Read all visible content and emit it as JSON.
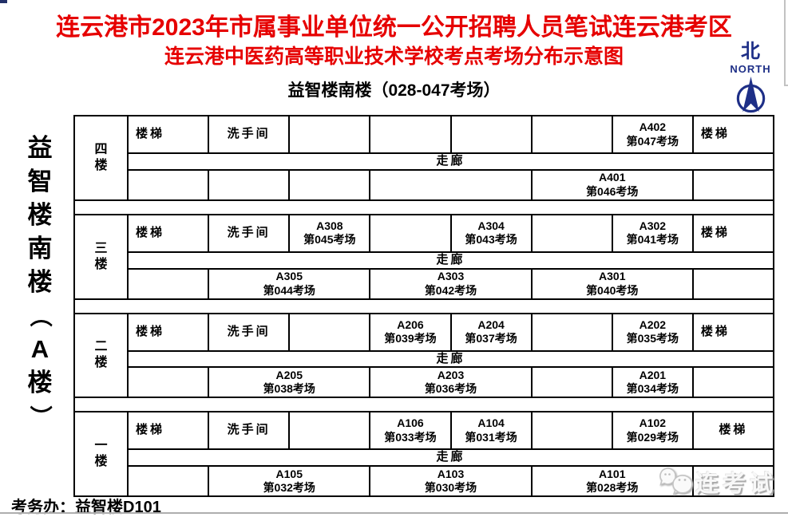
{
  "title": {
    "line1": "连云港市2023年市属事业单位统一公开招聘人员笔试连云港考区",
    "line2": "连云港中医药高等职业技术学校考点考场分布示意图",
    "subtitle": "益智楼南楼（028-047考场）"
  },
  "north": {
    "hanzi": "北",
    "label": "NORTH"
  },
  "building_label_chars": [
    "益",
    "智",
    "楼",
    "南",
    "楼",
    "（",
    "A",
    "楼",
    "）"
  ],
  "footer": {
    "exam_office": "考务办：益智楼D101"
  },
  "watermark": {
    "text": "连考试"
  },
  "colors": {
    "title_red": "#e60000",
    "navy": "#1e2f87",
    "line": "#000000"
  },
  "floors": [
    {
      "label": "四楼",
      "corridor": "走廊",
      "top_cells": [
        {
          "type": "stairs",
          "text": "楼梯",
          "span": 1,
          "align": "left"
        },
        {
          "type": "restroom",
          "text": "洗手间",
          "span": 1
        },
        {
          "type": "empty",
          "span": 1
        },
        {
          "type": "empty",
          "span": 1
        },
        {
          "type": "empty",
          "span": 1
        },
        {
          "type": "empty",
          "span": 1
        },
        {
          "type": "room",
          "room": "A402",
          "exam": "第047考场",
          "span": 1
        },
        {
          "type": "stairs",
          "text": "楼梯",
          "span": 1,
          "align": "left"
        }
      ],
      "bottom_cells": [
        {
          "type": "empty",
          "span": 1
        },
        {
          "type": "empty",
          "span": 1
        },
        {
          "type": "empty",
          "span": 1
        },
        {
          "type": "empty",
          "span": 2
        },
        {
          "type": "room",
          "room": "A401",
          "exam": "第046考场",
          "span": 2
        },
        {
          "type": "empty",
          "span": 1
        }
      ]
    },
    {
      "label": "三楼",
      "corridor": "走廊",
      "top_cells": [
        {
          "type": "stairs",
          "text": "楼梯",
          "span": 1,
          "align": "left"
        },
        {
          "type": "restroom",
          "text": "洗手间",
          "span": 1
        },
        {
          "type": "room",
          "room": "A308",
          "exam": "第045考场",
          "span": 1
        },
        {
          "type": "empty",
          "span": 1
        },
        {
          "type": "room",
          "room": "A304",
          "exam": "第043考场",
          "span": 1
        },
        {
          "type": "empty",
          "span": 1
        },
        {
          "type": "room",
          "room": "A302",
          "exam": "第041考场",
          "span": 1
        },
        {
          "type": "stairs",
          "text": "楼梯",
          "span": 1,
          "align": "left"
        }
      ],
      "bottom_cells": [
        {
          "type": "empty",
          "span": 1
        },
        {
          "type": "room",
          "room": "A305",
          "exam": "第044考场",
          "span": 2
        },
        {
          "type": "room",
          "room": "A303",
          "exam": "第042考场",
          "span": 2
        },
        {
          "type": "room",
          "room": "A301",
          "exam": "第040考场",
          "span": 2
        },
        {
          "type": "empty",
          "span": 1
        }
      ]
    },
    {
      "label": "二楼",
      "corridor": "走廊",
      "top_cells": [
        {
          "type": "stairs",
          "text": "楼梯",
          "span": 1,
          "align": "left"
        },
        {
          "type": "restroom",
          "text": "洗手间",
          "span": 1
        },
        {
          "type": "empty",
          "span": 1
        },
        {
          "type": "room",
          "room": "A206",
          "exam": "第039考场",
          "span": 1
        },
        {
          "type": "room",
          "room": "A204",
          "exam": "第037考场",
          "span": 1
        },
        {
          "type": "empty",
          "span": 1
        },
        {
          "type": "room",
          "room": "A202",
          "exam": "第035考场",
          "span": 1
        },
        {
          "type": "stairs",
          "text": "楼梯",
          "span": 1,
          "align": "left"
        }
      ],
      "bottom_cells": [
        {
          "type": "empty",
          "span": 1
        },
        {
          "type": "room",
          "room": "A205",
          "exam": "第038考场",
          "span": 2
        },
        {
          "type": "room",
          "room": "A203",
          "exam": "第036考场",
          "span": 2
        },
        {
          "type": "empty",
          "span": 1
        },
        {
          "type": "room",
          "room": "A201",
          "exam": "第034考场",
          "span": 1
        },
        {
          "type": "empty",
          "span": 1
        }
      ]
    },
    {
      "label": "一楼",
      "corridor": "走廊",
      "top_cells": [
        {
          "type": "stairs",
          "text": "楼梯",
          "span": 1,
          "align": "left"
        },
        {
          "type": "restroom",
          "text": "洗手间",
          "span": 1
        },
        {
          "type": "empty",
          "span": 1
        },
        {
          "type": "room",
          "room": "A106",
          "exam": "第033考场",
          "span": 1
        },
        {
          "type": "room",
          "room": "A104",
          "exam": "第031考场",
          "span": 1
        },
        {
          "type": "empty",
          "span": 1
        },
        {
          "type": "room",
          "room": "A102",
          "exam": "第029考场",
          "span": 1
        },
        {
          "type": "stairs",
          "text": "楼梯",
          "span": 1
        }
      ],
      "bottom_cells": [
        {
          "type": "empty",
          "span": 1
        },
        {
          "type": "room",
          "room": "A105",
          "exam": "第032考场",
          "span": 2
        },
        {
          "type": "room",
          "room": "A103",
          "exam": "第030考场",
          "span": 2
        },
        {
          "type": "room",
          "room": "A101",
          "exam": "第028考场",
          "span": 2
        },
        {
          "type": "empty",
          "span": 1
        }
      ]
    }
  ]
}
